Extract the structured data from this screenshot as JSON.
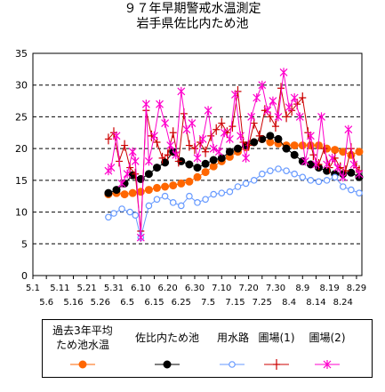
{
  "title": "９７年早期警戒水温測定",
  "subtitle": "岩手県佐比内ため池",
  "colors": {
    "avg": "#ff6600",
    "pond": "#000000",
    "canal": "#6699ff",
    "field1": "#cc0000",
    "field2": "#ff00cc"
  },
  "chart_data": {
    "type": "line",
    "ylim": [
      0,
      35
    ],
    "yticks": [
      "0",
      "5",
      "10",
      "15",
      "20",
      "25",
      "30",
      "35"
    ],
    "x_range_days": [
      0,
      122
    ],
    "xticks_row1": [
      "5.1",
      "5.11",
      "5.21",
      "5.31",
      "6.10",
      "6.20",
      "6.30",
      "7.10",
      "7.20",
      "7.30",
      "8.9",
      "8.19",
      "8.29"
    ],
    "xticks_row2": [
      "5.6",
      "5.16",
      "5.26",
      "6.5",
      "6.15",
      "6.25",
      "7.5",
      "7.15",
      "7.25",
      "8.4",
      "8.14",
      "8.24"
    ],
    "grid": "horizontal dashed",
    "legend_position": "bottom",
    "series": [
      {
        "name": "過去3年平均ため池水温",
        "key": "avg",
        "marker": "dot",
        "x": [
          28,
          31,
          34,
          37,
          40,
          43,
          46,
          49,
          52,
          55,
          58,
          61,
          64,
          67,
          70,
          73,
          76,
          79,
          82,
          85,
          88,
          91,
          94,
          97,
          100,
          103,
          106,
          109,
          112,
          115,
          118,
          121
        ],
        "y": [
          12.8,
          13.0,
          12.8,
          13.0,
          13.2,
          13.5,
          13.8,
          14.0,
          14.2,
          14.5,
          14.8,
          15.5,
          16.3,
          17.2,
          18.0,
          18.7,
          19.5,
          20.2,
          21.0,
          21.5,
          21.0,
          20.8,
          20.5,
          20.5,
          20.5,
          20.5,
          20.5,
          20.0,
          19.8,
          19.5,
          19.0,
          19.5
        ]
      },
      {
        "name": "佐比内ため池",
        "key": "pond",
        "marker": "dot",
        "x": [
          28,
          31,
          34,
          37,
          40,
          43,
          46,
          49,
          52,
          55,
          58,
          61,
          64,
          67,
          70,
          73,
          76,
          79,
          82,
          85,
          88,
          91,
          94,
          97,
          100,
          103,
          106,
          109,
          112,
          115,
          118,
          121
        ],
        "y": [
          13.0,
          13.5,
          14.5,
          15.8,
          15.2,
          16.0,
          17.0,
          17.8,
          19.5,
          18.0,
          17.5,
          17.0,
          17.6,
          18.2,
          18.5,
          19.5,
          20.0,
          20.5,
          21.0,
          21.5,
          22.0,
          21.5,
          20.0,
          19.0,
          18.0,
          17.5,
          17.0,
          16.5,
          16.0,
          16.0,
          16.2,
          15.5
        ]
      },
      {
        "name": "用水路",
        "key": "canal",
        "marker": "circle",
        "x": [
          28,
          30,
          33,
          36,
          38,
          40,
          43,
          46,
          49,
          52,
          55,
          58,
          61,
          64,
          67,
          70,
          73,
          76,
          79,
          82,
          85,
          88,
          91,
          94,
          97,
          100,
          103,
          106,
          109,
          112,
          115,
          118,
          121
        ],
        "y": [
          9.2,
          9.8,
          10.5,
          10.0,
          9.5,
          6.0,
          11.0,
          12.0,
          12.5,
          11.5,
          11.0,
          12.5,
          11.5,
          12.0,
          12.8,
          13.0,
          13.2,
          14.0,
          14.5,
          15.0,
          16.0,
          16.5,
          16.8,
          16.5,
          16.0,
          15.5,
          15.0,
          14.8,
          15.0,
          15.5,
          14.0,
          13.5,
          13.0
        ]
      },
      {
        "name": "圃場(1)",
        "key": "field1",
        "marker": "plus",
        "x": [
          28,
          30,
          32,
          34,
          36,
          38,
          40,
          42,
          44,
          46,
          48,
          50,
          52,
          54,
          56,
          58,
          60,
          62,
          64,
          66,
          68,
          70,
          72,
          74,
          76,
          78,
          80,
          82,
          84,
          86,
          88,
          90,
          92,
          94,
          96,
          98,
          100,
          102,
          104,
          106,
          108,
          110,
          112,
          114,
          116,
          118,
          120,
          121
        ],
        "y": [
          21.5,
          22.5,
          18.0,
          20.5,
          17.0,
          16.0,
          7.0,
          26.0,
          22.0,
          21.0,
          18.5,
          19.0,
          22.5,
          18.0,
          25.5,
          20.5,
          20.0,
          21.0,
          19.5,
          22.0,
          23.0,
          24.0,
          22.5,
          23.5,
          29.0,
          21.0,
          20.5,
          24.0,
          22.0,
          26.0,
          25.0,
          23.5,
          29.5,
          25.0,
          26.0,
          27.0,
          28.0,
          22.5,
          19.0,
          17.5,
          20.0,
          17.0,
          18.5,
          17.0,
          16.5,
          20.0,
          17.0,
          16.5
        ]
      },
      {
        "name": "圃場(2)",
        "key": "field2",
        "marker": "asterisk",
        "x": [
          28,
          29,
          31,
          33,
          35,
          37,
          38,
          40,
          42,
          43,
          45,
          47,
          49,
          51,
          53,
          55,
          57,
          59,
          61,
          63,
          65,
          67,
          69,
          71,
          73,
          75,
          77,
          79,
          81,
          83,
          85,
          87,
          89,
          91,
          93,
          95,
          97,
          99,
          101,
          103,
          105,
          107,
          109,
          111,
          113,
          115,
          117,
          119,
          121
        ],
        "y": [
          16.5,
          17.0,
          22.0,
          14.5,
          16.0,
          19.5,
          18.0,
          6.0,
          27.0,
          18.0,
          22.0,
          27.0,
          24.0,
          20.5,
          19.0,
          29.0,
          23.0,
          24.0,
          18.5,
          21.5,
          26.0,
          20.0,
          19.5,
          22.5,
          21.5,
          28.5,
          22.0,
          18.5,
          25.0,
          28.0,
          30.0,
          26.0,
          27.5,
          25.0,
          32.0,
          26.5,
          28.0,
          25.0,
          18.0,
          22.0,
          17.5,
          25.0,
          17.5,
          18.5,
          17.0,
          15.5,
          23.0,
          17.5,
          16.0
        ]
      }
    ]
  },
  "legend": {
    "items": [
      {
        "label": "過去3年平均ため池水温",
        "line1": "過去3年平均",
        "line2": "ため池水温"
      },
      {
        "label": "佐比内ため池"
      },
      {
        "label": "用水路"
      },
      {
        "label": "圃場(1)"
      },
      {
        "label": "圃場(2)"
      }
    ]
  }
}
